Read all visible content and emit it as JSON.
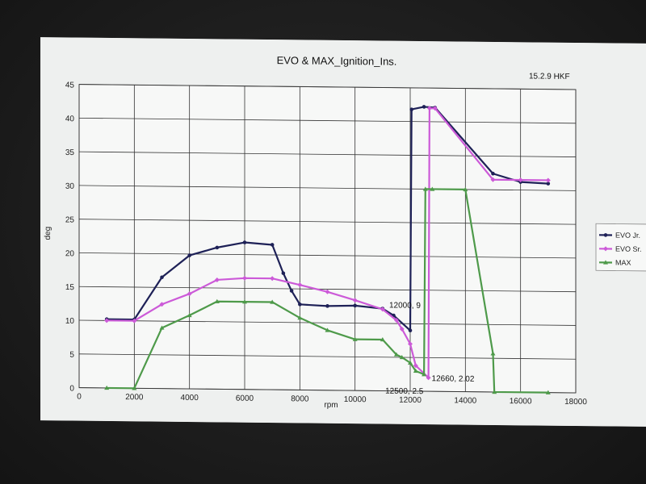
{
  "chart_data": {
    "type": "line",
    "title": "EVO & MAX_Ignition_Ins.",
    "stamp": "15.2.9 HKF",
    "xlabel": "rpm",
    "ylabel": "deg",
    "xlim": [
      0,
      18000
    ],
    "ylim": [
      0,
      45
    ],
    "xticks": [
      0,
      2000,
      4000,
      6000,
      8000,
      10000,
      12000,
      14000,
      16000,
      18000
    ],
    "yticks": [
      0,
      5,
      10,
      15,
      20,
      25,
      30,
      35,
      40,
      45
    ],
    "grid": true,
    "legend_position": "right",
    "series": [
      {
        "name": "EVO Jr.",
        "color": "#1e2157",
        "marker": "circle",
        "points": [
          [
            1000,
            10.2
          ],
          [
            2000,
            10.2
          ],
          [
            3000,
            16.5
          ],
          [
            4000,
            19.8
          ],
          [
            5000,
            21
          ],
          [
            6000,
            21.8
          ],
          [
            7000,
            21.5
          ],
          [
            7400,
            17.3
          ],
          [
            7700,
            14.7
          ],
          [
            8000,
            12.7
          ],
          [
            9000,
            12.5
          ],
          [
            10000,
            12.6
          ],
          [
            11000,
            12.2
          ],
          [
            11400,
            11.2
          ],
          [
            12000,
            9
          ],
          [
            12050,
            41.8
          ],
          [
            12500,
            42.2
          ],
          [
            12900,
            42.1
          ],
          [
            15000,
            32.4
          ],
          [
            16000,
            31.2
          ],
          [
            17000,
            31
          ]
        ]
      },
      {
        "name": "EVO Sr.",
        "color": "#cc5ad8",
        "marker": "diamond",
        "points": [
          [
            1000,
            10
          ],
          [
            2000,
            10
          ],
          [
            3000,
            12.5
          ],
          [
            4000,
            14.1
          ],
          [
            5000,
            16.2
          ],
          [
            6000,
            16.5
          ],
          [
            7000,
            16.5
          ],
          [
            8000,
            15.6
          ],
          [
            9000,
            14.6
          ],
          [
            10000,
            13.4
          ],
          [
            11000,
            12.1
          ],
          [
            11500,
            10.5
          ],
          [
            11700,
            9.2
          ],
          [
            12000,
            7
          ],
          [
            12200,
            3.8
          ],
          [
            12660,
            2.02
          ],
          [
            12700,
            42
          ],
          [
            12900,
            42
          ],
          [
            15000,
            31.5
          ],
          [
            16000,
            31.5
          ],
          [
            17000,
            31.5
          ]
        ]
      },
      {
        "name": "MAX",
        "color": "#4e9a4a",
        "marker": "triangle",
        "points": [
          [
            1000,
            0
          ],
          [
            2000,
            0
          ],
          [
            3000,
            9
          ],
          [
            4000,
            10.9
          ],
          [
            5000,
            13
          ],
          [
            6000,
            13
          ],
          [
            7000,
            13
          ],
          [
            8000,
            10.7
          ],
          [
            9000,
            8.9
          ],
          [
            10000,
            7.6
          ],
          [
            11000,
            7.6
          ],
          [
            11500,
            5.4
          ],
          [
            11700,
            5
          ],
          [
            12000,
            4.2
          ],
          [
            12200,
            3
          ],
          [
            12500,
            2.5
          ],
          [
            12550,
            30
          ],
          [
            12800,
            30
          ],
          [
            14000,
            30
          ],
          [
            15000,
            5.7
          ],
          [
            15050,
            0
          ],
          [
            17000,
            0
          ]
        ]
      }
    ],
    "annotations": [
      {
        "text": "12000, 9",
        "x": 12000,
        "y": 9
      },
      {
        "text": "12660, 2.02",
        "x": 12660,
        "y": 2.02
      },
      {
        "text": "12500, 2.5",
        "x": 12500,
        "y": 2.5
      }
    ]
  }
}
